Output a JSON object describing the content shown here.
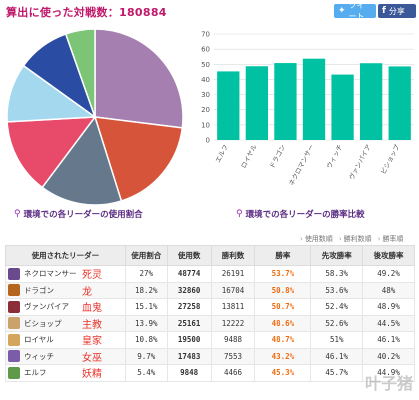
{
  "header": {
    "title": "算出に使った対戦数：180884",
    "tweet_label": "ツイート",
    "share_label": "分享"
  },
  "pie_caption": "環境での各リーダーの使用割合",
  "bar_caption": "環境での各リーダーの勝率比較",
  "sort_links": [
    "使用数順",
    "勝利数順",
    "勝率順"
  ],
  "colors": {
    "teal_bar": "#00c2a2",
    "title_pink": "#c0186a",
    "rate_orange": "#f06b0f"
  },
  "chart_data": [
    {
      "type": "pie",
      "title": "",
      "slices": [
        {
          "label": "ネクロマンサー",
          "value": 27,
          "color": "#a57fb0"
        },
        {
          "label": "ドラゴン",
          "value": 18.2,
          "color": "#d6553a"
        },
        {
          "label": "ヴァンパイア",
          "value": 15.1,
          "color": "#65788c"
        },
        {
          "label": "ビショップ",
          "value": 13.9,
          "color": "#e84a6a"
        },
        {
          "label": "ロイヤル",
          "value": 10.8,
          "color": "#a4d8ee"
        },
        {
          "label": "ウィッチ",
          "value": 9.7,
          "color": "#2a4ca2"
        },
        {
          "label": "エルフ",
          "value": 5.4,
          "color": "#7cc576"
        }
      ]
    },
    {
      "type": "bar",
      "title": "",
      "categories": [
        "エルフ",
        "ロイヤル",
        "ドラゴン",
        "ネクロマンサー",
        "ウィッチ",
        "ヴァンパイア",
        "ビショップ"
      ],
      "values": [
        45.3,
        48.7,
        50.8,
        53.7,
        43.2,
        50.7,
        48.6
      ],
      "ylim": [
        0,
        70
      ],
      "yticks": [
        0,
        10,
        20,
        30,
        40,
        50,
        60,
        70
      ],
      "grid": true,
      "color": "#00c2a2"
    }
  ],
  "table": {
    "headers": [
      "使用されたリーダー",
      "使用割合",
      "使用数",
      "勝利数",
      "勝率",
      "先攻勝率",
      "後攻勝率"
    ],
    "rows": [
      {
        "name": "ネクロマンサー",
        "cn": "死灵",
        "share": "27%",
        "used": "48774",
        "wins": "26191",
        "rate": "53.7%",
        "first": "58.3%",
        "second": "49.2%",
        "avatar": "#6a4a8c"
      },
      {
        "name": "ドラゴン",
        "cn": "龙",
        "share": "18.2%",
        "used": "32860",
        "wins": "16704",
        "rate": "50.8%",
        "first": "53.6%",
        "second": "48%",
        "avatar": "#b5651d"
      },
      {
        "name": "ヴァンパイア",
        "cn": "血鬼",
        "share": "15.1%",
        "used": "27258",
        "wins": "13811",
        "rate": "50.7%",
        "first": "52.4%",
        "second": "48.9%",
        "avatar": "#8c2d3a"
      },
      {
        "name": "ビショップ",
        "cn": "主教",
        "share": "13.9%",
        "used": "25161",
        "wins": "12222",
        "rate": "48.6%",
        "first": "52.6%",
        "second": "44.5%",
        "avatar": "#c9a36a"
      },
      {
        "name": "ロイヤル",
        "cn": "皇家",
        "share": "10.8%",
        "used": "19500",
        "wins": "9488",
        "rate": "48.7%",
        "first": "51%",
        "second": "46.1%",
        "avatar": "#d4a55c"
      },
      {
        "name": "ウィッチ",
        "cn": "女巫",
        "share": "9.7%",
        "used": "17483",
        "wins": "7553",
        "rate": "43.2%",
        "first": "46.1%",
        "second": "40.2%",
        "avatar": "#7a5ca8"
      },
      {
        "name": "エルフ",
        "cn": "妖精",
        "share": "5.4%",
        "used": "9848",
        "wins": "4466",
        "rate": "45.3%",
        "first": "45.7%",
        "second": "44.9%",
        "avatar": "#5f9a4a"
      }
    ]
  },
  "watermark": "叶子猪"
}
